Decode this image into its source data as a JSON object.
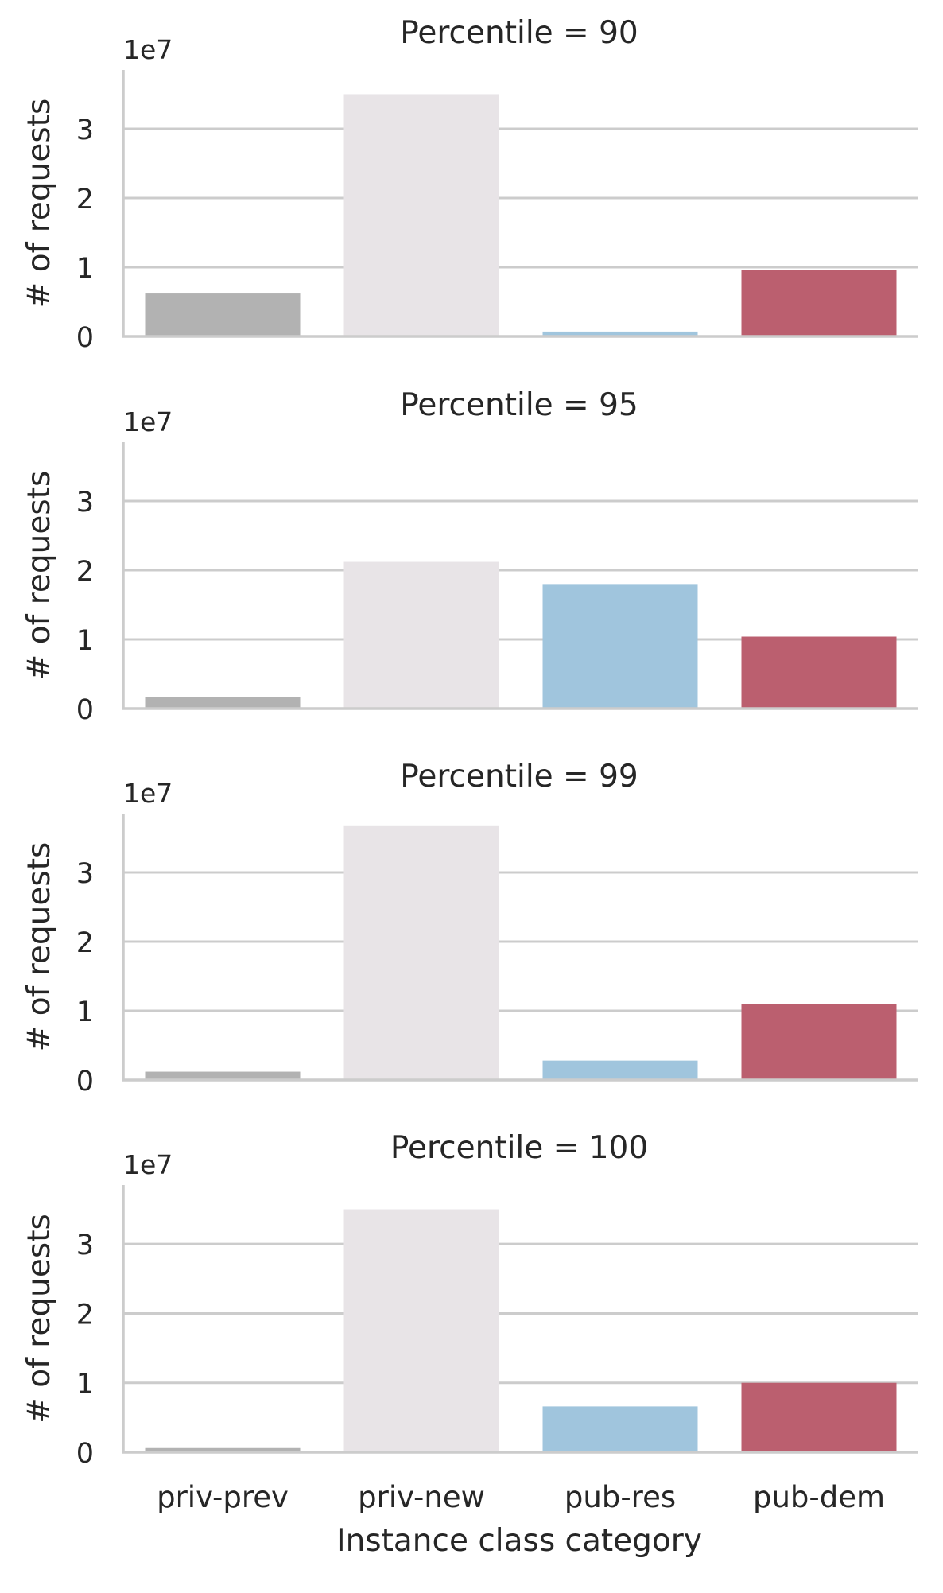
{
  "chart_data": {
    "type": "bar",
    "layout": "facet-grid (4 rows, shared x and y axes)",
    "xlabel": "Instance class category",
    "ylabel": "# of requests",
    "categories": [
      "priv-prev",
      "priv-new",
      "pub-res",
      "pub-dem"
    ],
    "y_offset_label": "1e7",
    "y_ticks": [
      "0",
      "1",
      "2",
      "3"
    ],
    "y_tick_values": [
      0,
      1,
      2,
      3
    ],
    "ylim": [
      0,
      3.85
    ],
    "grid": "horizontal",
    "colors": {
      "priv-prev": "#b2b2b2",
      "priv-new": "#e8e4e7",
      "pub-res": "#a0c5dd",
      "pub-dem": "#bb5f6f",
      "gridline": "#cccccc",
      "axis": "#cccccc",
      "text": "#262626"
    },
    "panels": [
      {
        "title": "Percentile = 90",
        "values": [
          0.62,
          3.5,
          0.07,
          0.96
        ]
      },
      {
        "title": "Percentile = 95",
        "values": [
          0.17,
          2.12,
          1.8,
          1.04
        ]
      },
      {
        "title": "Percentile = 99",
        "values": [
          0.12,
          3.68,
          0.28,
          1.1
        ]
      },
      {
        "title": "Percentile = 100",
        "values": [
          0.06,
          3.5,
          0.66,
          1.0
        ]
      }
    ]
  }
}
